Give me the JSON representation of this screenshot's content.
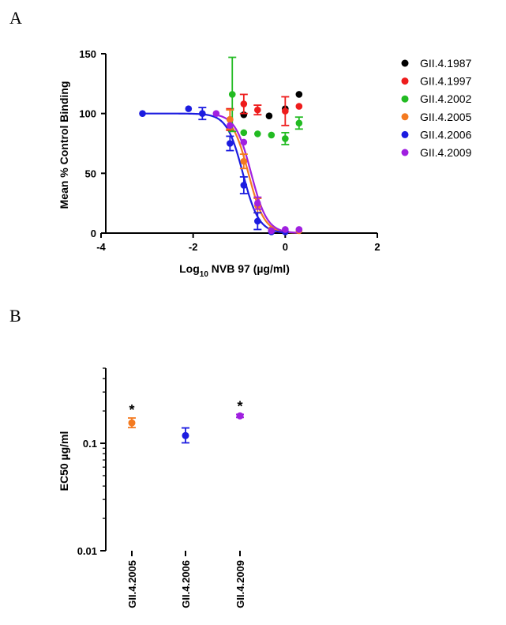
{
  "panels": {
    "a_label": "A",
    "b_label": "B"
  },
  "chart_data": [
    {
      "type": "scatter",
      "panel": "A",
      "ylabel": "Mean % Control Binding",
      "xlabel_main": "Log",
      "xlabel_sub": "10",
      "xlabel_rest": " NVB 97 (µg/ml)",
      "xlim": [
        -4,
        2
      ],
      "ylim": [
        0,
        150
      ],
      "xticks": [
        -4,
        -2,
        0,
        2
      ],
      "yticks": [
        0,
        50,
        100,
        150
      ],
      "legend_position": "right",
      "series": [
        {
          "name": "GII.4.1987",
          "color": "#000000",
          "fit": false,
          "points": [
            {
              "x": -0.9,
              "y": 99,
              "err": 0
            },
            {
              "x": -0.35,
              "y": 98,
              "err": 0
            },
            {
              "x": 0.0,
              "y": 104,
              "err": 0
            },
            {
              "x": 0.3,
              "y": 116,
              "err": 0
            }
          ]
        },
        {
          "name": "GII.4.1997",
          "color": "#ee1c1c",
          "fit": false,
          "points": [
            {
              "x": -1.2,
              "y": 95,
              "err": 9
            },
            {
              "x": -0.9,
              "y": 108,
              "err": 8
            },
            {
              "x": -0.6,
              "y": 103,
              "err": 4
            },
            {
              "x": 0.0,
              "y": 102,
              "err": 12
            },
            {
              "x": 0.3,
              "y": 106,
              "err": 0
            }
          ]
        },
        {
          "name": "GII.4.2002",
          "color": "#22bb22",
          "fit": false,
          "points": [
            {
              "x": -1.15,
              "y": 116,
              "err": 31
            },
            {
              "x": -0.9,
              "y": 84,
              "err": 0
            },
            {
              "x": -0.6,
              "y": 83,
              "err": 0
            },
            {
              "x": -0.3,
              "y": 82,
              "err": 0
            },
            {
              "x": 0.0,
              "y": 79,
              "err": 5
            },
            {
              "x": 0.3,
              "y": 92,
              "err": 5
            }
          ]
        },
        {
          "name": "GII.4.2005",
          "color": "#f47a20",
          "fit": true,
          "logEC50": -0.8,
          "hill": 2.5,
          "points": [
            {
              "x": -1.2,
              "y": 95,
              "err": 8
            },
            {
              "x": -0.9,
              "y": 60,
              "err": 6
            },
            {
              "x": -0.6,
              "y": 23,
              "err": 6
            },
            {
              "x": -0.3,
              "y": 3,
              "err": 0
            },
            {
              "x": 0.0,
              "y": 2,
              "err": 0
            },
            {
              "x": 0.3,
              "y": 2,
              "err": 0
            }
          ]
        },
        {
          "name": "GII.4.2006",
          "color": "#1c1ce0",
          "fit": true,
          "logEC50": -0.92,
          "hill": 2.5,
          "points": [
            {
              "x": -3.1,
              "y": 100,
              "err": 0
            },
            {
              "x": -2.1,
              "y": 104,
              "err": 0
            },
            {
              "x": -1.8,
              "y": 100,
              "err": 5
            },
            {
              "x": -1.2,
              "y": 75,
              "err": 6
            },
            {
              "x": -0.9,
              "y": 40,
              "err": 7
            },
            {
              "x": -0.6,
              "y": 10,
              "err": 7
            },
            {
              "x": -0.3,
              "y": 1,
              "err": 0
            },
            {
              "x": 0.0,
              "y": 1,
              "err": 0
            }
          ]
        },
        {
          "name": "GII.4.2009",
          "color": "#a020e0",
          "fit": true,
          "logEC50": -0.74,
          "hill": 2.5,
          "points": [
            {
              "x": -1.5,
              "y": 100,
              "err": 0
            },
            {
              "x": -1.2,
              "y": 90,
              "err": 0
            },
            {
              "x": -0.9,
              "y": 76,
              "err": 0
            },
            {
              "x": -0.6,
              "y": 25,
              "err": 5
            },
            {
              "x": -0.3,
              "y": 2,
              "err": 0
            },
            {
              "x": 0.0,
              "y": 3,
              "err": 0
            },
            {
              "x": 0.3,
              "y": 3,
              "err": 0
            }
          ]
        }
      ]
    },
    {
      "type": "scatter",
      "panel": "B",
      "ylabel": "EC50 µg/ml",
      "yscale": "log",
      "ylim": [
        0.01,
        0.5
      ],
      "yticks": [
        0.01,
        0.1
      ],
      "ytick_labels": [
        "0.01",
        "0.1"
      ],
      "categories": [
        "GII.4.2005",
        "GII.4.2006",
        "GII.4.2009"
      ],
      "points": [
        {
          "category": "GII.4.2005",
          "y": 0.155,
          "low": 0.14,
          "high": 0.172,
          "color": "#f47a20",
          "annotation": "*"
        },
        {
          "category": "GII.4.2006",
          "y": 0.118,
          "low": 0.101,
          "high": 0.139,
          "color": "#1c1ce0",
          "annotation": ""
        },
        {
          "category": "GII.4.2009",
          "y": 0.18,
          "low": 0.174,
          "high": 0.186,
          "color": "#a020e0",
          "annotation": "*"
        }
      ]
    }
  ]
}
